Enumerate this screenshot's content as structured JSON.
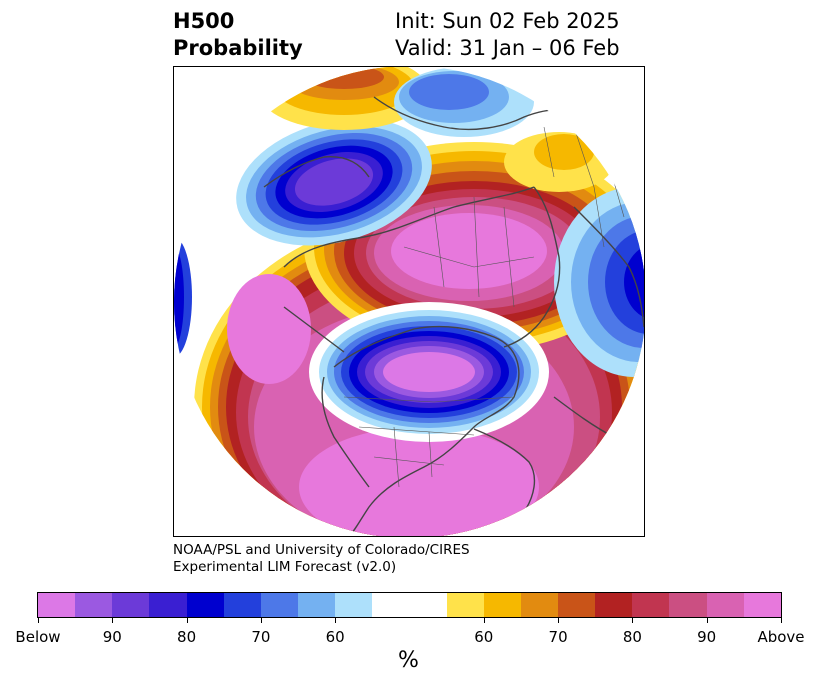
{
  "title": {
    "left_line1": "H500",
    "left_line2": "Probability",
    "right_line1": "Init: Sun 02 Feb 2025",
    "right_line2": "Valid: 31 Jan – 06 Feb"
  },
  "credit": {
    "line1": "NOAA/PSL and University of Colorado/CIRES",
    "line2": "Experimental LIM Forecast (v2.0)"
  },
  "colorbar": {
    "below_colors": [
      "#dc78e6",
      "#9b59e1",
      "#6c3ad8",
      "#3a1fd2",
      "#0000cf",
      "#2340dc",
      "#4d78e8",
      "#74b1f1",
      "#ade0fb"
    ],
    "neutral_color": "#ffffff",
    "above_colors": [
      "#ffe24a",
      "#f6b800",
      "#e28b10",
      "#c95418",
      "#b22222",
      "#c13550",
      "#cb4f82",
      "#d962b2",
      "#e778dc"
    ],
    "tick_labels": [
      "Below",
      "90",
      "80",
      "70",
      "60",
      "60",
      "70",
      "80",
      "90",
      "Above"
    ],
    "unit_label": "%"
  }
}
